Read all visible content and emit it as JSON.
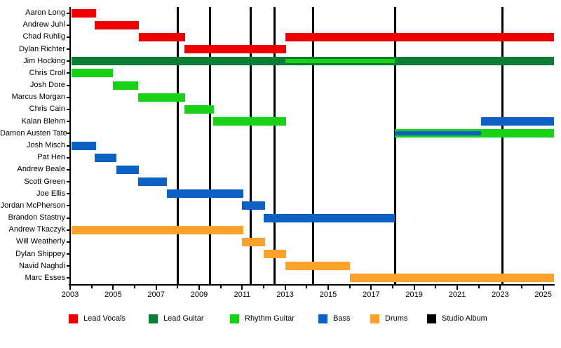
{
  "chart_data": {
    "type": "gantt-timeline",
    "title": "",
    "x_axis": {
      "min": 2003,
      "max": 2025.5,
      "labeled_ticks": [
        2003,
        2005,
        2007,
        2009,
        2011,
        2013,
        2015,
        2017,
        2019,
        2021,
        2023,
        2025
      ],
      "minor_tick_every": 1,
      "grid": false
    },
    "legend_position": "bottom",
    "legend": [
      {
        "id": "lead_vocals",
        "label": "Lead Vocals",
        "color": "#ee0000"
      },
      {
        "id": "lead_guitar",
        "label": "Lead Guitar",
        "color": "#0a7d36"
      },
      {
        "id": "rhythm_guitar",
        "label": "Rhythm Guitar",
        "color": "#17d117"
      },
      {
        "id": "bass",
        "label": "Bass",
        "color": "#0b62c4"
      },
      {
        "id": "drums",
        "label": "Drums",
        "color": "#faa22c"
      },
      {
        "id": "studio_album",
        "label": "Studio Album",
        "color": "#000000"
      }
    ],
    "members": [
      {
        "name": "Aaron Long",
        "bars": [
          {
            "role": "lead_vocals",
            "start": 2003.05,
            "end": 2004.2
          }
        ]
      },
      {
        "name": "Andrew Juhl",
        "bars": [
          {
            "role": "lead_vocals",
            "start": 2004.15,
            "end": 2006.2
          }
        ]
      },
      {
        "name": "Chad Ruhlig",
        "bars": [
          {
            "role": "lead_vocals",
            "start": 2006.2,
            "end": 2008.35
          },
          {
            "role": "lead_vocals",
            "start": 2013.0,
            "end": 2025.5
          }
        ]
      },
      {
        "name": "Dylan Richter",
        "bars": [
          {
            "role": "lead_vocals",
            "start": 2008.3,
            "end": 2013.05
          }
        ]
      },
      {
        "name": "Jim Hocking",
        "bars": [
          {
            "role": "lead_guitar",
            "start": 2003.05,
            "end": 2025.5
          },
          {
            "role": "rhythm_guitar",
            "start": 2013.0,
            "end": 2018.1,
            "inset": true
          }
        ]
      },
      {
        "name": "Chris Croll",
        "bars": [
          {
            "role": "rhythm_guitar",
            "start": 2003.05,
            "end": 2005.0
          }
        ]
      },
      {
        "name": "Josh Dore",
        "bars": [
          {
            "role": "rhythm_guitar",
            "start": 2005.0,
            "end": 2006.15
          }
        ]
      },
      {
        "name": "Marcus Morgan",
        "bars": [
          {
            "role": "rhythm_guitar",
            "start": 2006.15,
            "end": 2008.35
          }
        ]
      },
      {
        "name": "Chris Cain",
        "bars": [
          {
            "role": "rhythm_guitar",
            "start": 2008.3,
            "end": 2009.7
          }
        ]
      },
      {
        "name": "Kalan Blehm",
        "bars": [
          {
            "role": "rhythm_guitar",
            "start": 2009.65,
            "end": 2013.05
          },
          {
            "role": "bass",
            "start": 2022.1,
            "end": 2025.5
          }
        ]
      },
      {
        "name": "Damon Austen Tate",
        "bars": [
          {
            "role": "rhythm_guitar",
            "start": 2018.1,
            "end": 2025.5
          },
          {
            "role": "bass",
            "start": 2018.1,
            "end": 2022.1,
            "inset": true
          }
        ]
      },
      {
        "name": "Josh Misch",
        "bars": [
          {
            "role": "bass",
            "start": 2003.05,
            "end": 2004.2
          }
        ]
      },
      {
        "name": "Pat Hen",
        "bars": [
          {
            "role": "bass",
            "start": 2004.15,
            "end": 2005.15
          }
        ]
      },
      {
        "name": "Andrew Beale",
        "bars": [
          {
            "role": "bass",
            "start": 2005.15,
            "end": 2006.2
          }
        ]
      },
      {
        "name": "Scott Green",
        "bars": [
          {
            "role": "bass",
            "start": 2006.15,
            "end": 2007.5
          }
        ]
      },
      {
        "name": "Joe Ellis",
        "bars": [
          {
            "role": "bass",
            "start": 2007.5,
            "end": 2011.05
          }
        ]
      },
      {
        "name": "Jordan McPherson",
        "bars": [
          {
            "role": "bass",
            "start": 2011.0,
            "end": 2012.05
          }
        ]
      },
      {
        "name": "Brandon Stastny",
        "bars": [
          {
            "role": "bass",
            "start": 2012.0,
            "end": 2018.1
          }
        ]
      },
      {
        "name": "Andrew Tkaczyk",
        "bars": [
          {
            "role": "drums",
            "start": 2003.05,
            "end": 2011.05
          }
        ]
      },
      {
        "name": "Will Weatherly",
        "bars": [
          {
            "role": "drums",
            "start": 2011.0,
            "end": 2012.05
          }
        ]
      },
      {
        "name": "Dylan Shippey",
        "bars": [
          {
            "role": "drums",
            "start": 2012.0,
            "end": 2013.05
          }
        ]
      },
      {
        "name": "Navid Naghdi",
        "bars": [
          {
            "role": "drums",
            "start": 2013.0,
            "end": 2016.0
          }
        ]
      },
      {
        "name": "Marc Esses",
        "bars": [
          {
            "role": "drums",
            "start": 2016.0,
            "end": 2025.5
          }
        ]
      }
    ],
    "albums": {
      "legend_role": "studio_album",
      "years": [
        2008.0,
        2009.5,
        2011.4,
        2012.5,
        2014.3,
        2018.1,
        2023.1
      ]
    }
  }
}
